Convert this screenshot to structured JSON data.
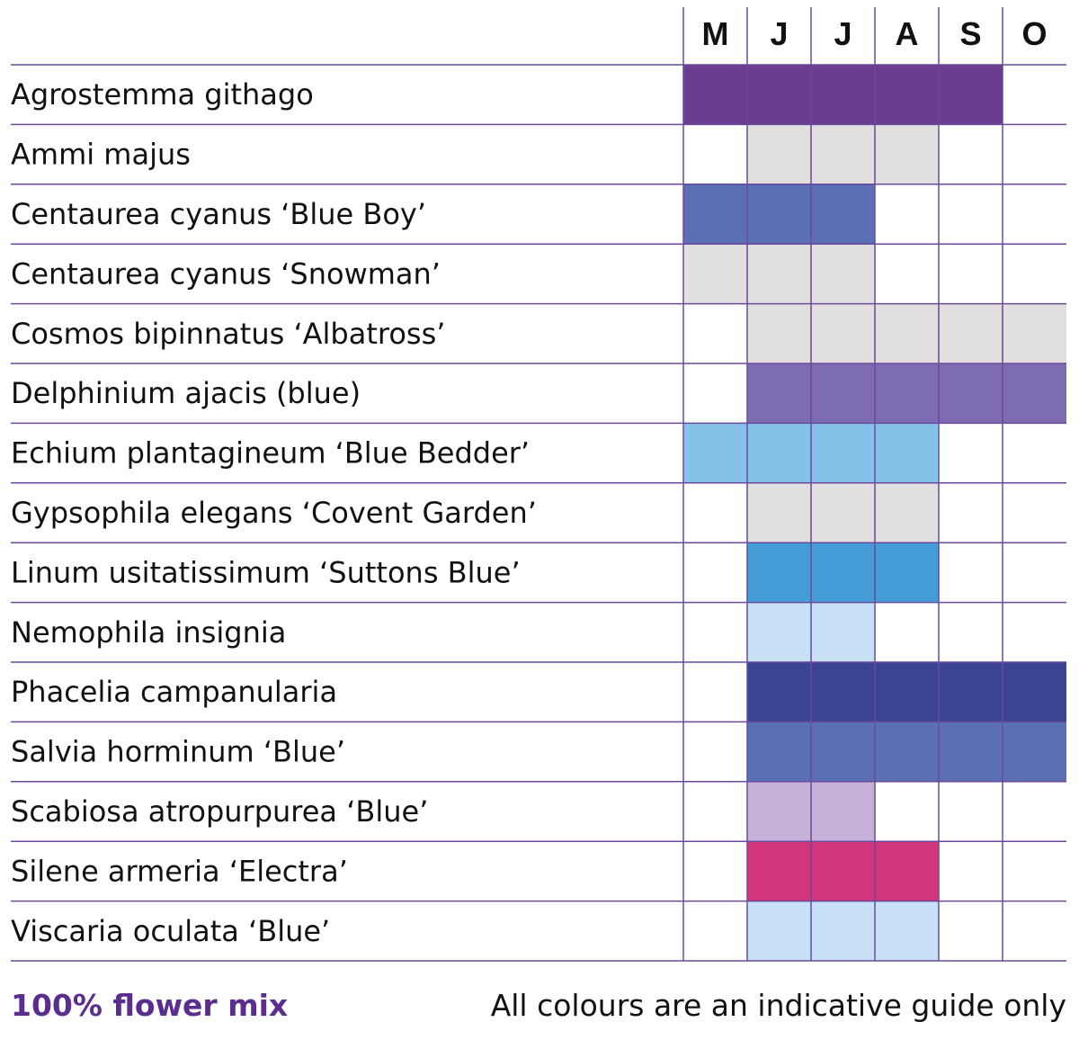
{
  "chart_data": {
    "type": "table",
    "columns": [
      "M",
      "J",
      "J",
      "A",
      "S",
      "O"
    ],
    "line_color": "#6a4a9c",
    "rows": [
      {
        "name": "Agrostemma githago",
        "color": "#6b3d90",
        "months": [
          1,
          1,
          1,
          1,
          1,
          0
        ]
      },
      {
        "name": "Ammi majus",
        "color": "#e2dfdf",
        "months": [
          0,
          1,
          1,
          1,
          0,
          0
        ]
      },
      {
        "name": "Centaurea cyanus ‘Blue Boy’",
        "color": "#5b6fb5",
        "months": [
          1,
          1,
          1,
          0,
          0,
          0
        ]
      },
      {
        "name": "Centaurea cyanus ‘Snowman’",
        "color": "#e2dfdf",
        "months": [
          1,
          1,
          1,
          0,
          0,
          0
        ]
      },
      {
        "name": "Cosmos bipinnatus ‘Albatross’",
        "color": "#e2dfdf",
        "months": [
          0,
          1,
          1,
          1,
          1,
          1
        ]
      },
      {
        "name": "Delphinium ajacis (blue)",
        "color": "#7d6cb2",
        "months": [
          0,
          1,
          1,
          1,
          1,
          1
        ]
      },
      {
        "name": "Echium plantagineum ‘Blue Bedder’",
        "color": "#85c2ea",
        "months": [
          1,
          1,
          1,
          1,
          0,
          0
        ]
      },
      {
        "name": "Gypsophila elegans ‘Covent Garden’",
        "color": "#e2dfdf",
        "months": [
          0,
          1,
          1,
          1,
          0,
          0
        ]
      },
      {
        "name": "Linum usitatissimum ‘Suttons Blue’",
        "color": "#459dd8",
        "months": [
          0,
          1,
          1,
          1,
          0,
          0
        ]
      },
      {
        "name": "Nemophila insignia",
        "color": "#c7e0f5",
        "months": [
          0,
          1,
          1,
          0,
          0,
          0
        ]
      },
      {
        "name": "Phacelia campanularia",
        "color": "#394493",
        "months": [
          0,
          1,
          1,
          1,
          1,
          1
        ]
      },
      {
        "name": "Salvia horminum ‘Blue’",
        "color": "#5b6fb5",
        "months": [
          0,
          1,
          1,
          1,
          1,
          1
        ]
      },
      {
        "name": "Scabiosa atropurpurea ‘Blue’",
        "color": "#c6b2d8",
        "months": [
          0,
          1,
          1,
          0,
          0,
          0
        ]
      },
      {
        "name": "Silene armeria ‘Electra’",
        "color": "#d1357a",
        "months": [
          0,
          1,
          1,
          1,
          0,
          0
        ]
      },
      {
        "name": "Viscaria oculata ‘Blue’",
        "color": "#c7e0f5",
        "months": [
          0,
          1,
          1,
          1,
          0,
          0
        ]
      }
    ]
  },
  "footer": {
    "mix": "100% flower mix",
    "note": "All colours are an indicative guide only"
  }
}
